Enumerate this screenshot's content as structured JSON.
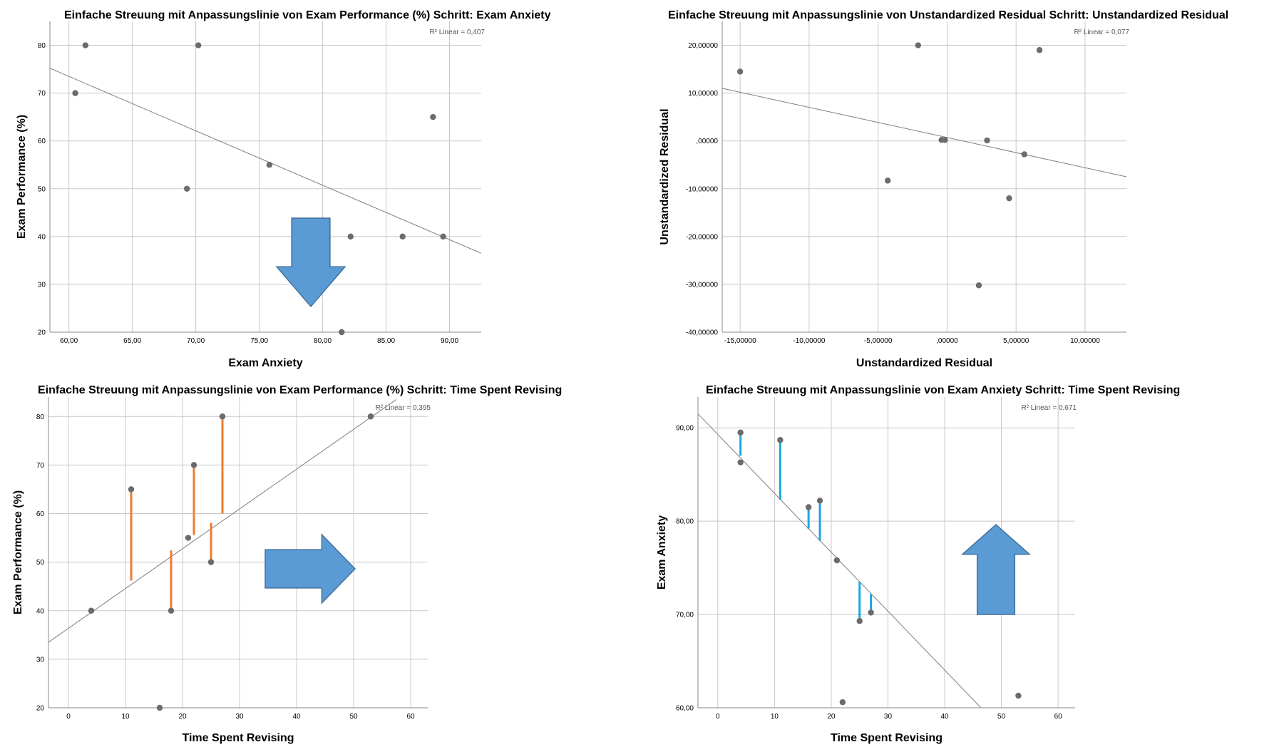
{
  "chart_data": [
    {
      "type": "scatter",
      "title": "Einfache Streuung mit Anpassungslinie  von Exam Performance (%) Schritt: Exam Anxiety",
      "xlabel": "Exam Anxiety",
      "ylabel": "Exam Performance (%)",
      "xlim": [
        58.5,
        92.5
      ],
      "ylim": [
        20,
        85
      ],
      "xticks": [
        60,
        65,
        70,
        75,
        80,
        85,
        90
      ],
      "xtick_labels": [
        "60,00",
        "65,00",
        "70,00",
        "75,00",
        "80,00",
        "85,00",
        "90,00"
      ],
      "yticks": [
        20,
        30,
        40,
        50,
        60,
        70,
        80
      ],
      "ytick_labels": [
        "20",
        "30",
        "40",
        "50",
        "60",
        "70",
        "80"
      ],
      "grid": true,
      "r2_label": "R² Linear = 0,407",
      "fit_line": {
        "x": [
          58.5,
          92.5
        ],
        "y": [
          75.2,
          36.5
        ]
      },
      "points": [
        {
          "x": 60.5,
          "y": 70
        },
        {
          "x": 61.3,
          "y": 80
        },
        {
          "x": 69.3,
          "y": 50
        },
        {
          "x": 70.2,
          "y": 80
        },
        {
          "x": 75.8,
          "y": 55
        },
        {
          "x": 81.5,
          "y": 20
        },
        {
          "x": 82.2,
          "y": 40
        },
        {
          "x": 86.3,
          "y": 40
        },
        {
          "x": 88.7,
          "y": 65
        },
        {
          "x": 89.5,
          "y": 40
        }
      ],
      "arrow": {
        "direction": "down",
        "color": "#5b9bd5"
      }
    },
    {
      "type": "scatter",
      "title": "Einfache Streuung mit Anpassungslinie  von Unstandardized Residual Schritt: Unstandardized Residual",
      "xlabel": "Unstandardized Residual",
      "ylabel": "Unstandardized Residual",
      "xlim": [
        -16.3,
        13
      ],
      "ylim": [
        -40,
        25
      ],
      "xticks": [
        -15,
        -10,
        -5,
        0,
        5,
        10
      ],
      "xtick_labels": [
        "-15,00000",
        "-10,00000",
        "-5,00000",
        ",00000",
        "5,00000",
        "10,00000"
      ],
      "yticks": [
        -40,
        -30,
        -20,
        -10,
        0,
        10,
        20
      ],
      "ytick_labels": [
        "-40,00000",
        "-30,00000",
        "-20,00000",
        "-10,00000",
        ",00000",
        "10,00000",
        "20,00000"
      ],
      "grid": true,
      "r2_label": "R² Linear = 0,077",
      "fit_line": {
        "x": [
          -16.3,
          13
        ],
        "y": [
          11.0,
          -7.5
        ]
      },
      "points": [
        {
          "x": -15,
          "y": 14.5
        },
        {
          "x": -4.3,
          "y": -8.3
        },
        {
          "x": -2.1,
          "y": 20
        },
        {
          "x": -0.4,
          "y": 0.2
        },
        {
          "x": -0.15,
          "y": 0.2
        },
        {
          "x": 2.3,
          "y": -30.2
        },
        {
          "x": 2.9,
          "y": 0.1
        },
        {
          "x": 4.5,
          "y": -12.0
        },
        {
          "x": 5.6,
          "y": -2.8
        },
        {
          "x": 6.7,
          "y": 19.0
        }
      ]
    },
    {
      "type": "scatter",
      "title": "Einfache Streuung mit Anpassungslinie  von Exam Performance (%) Schritt: Time Spent Revising",
      "xlabel": "Time Spent Revising",
      "ylabel": "Exam Performance (%)",
      "xlim": [
        -3.5,
        63
      ],
      "ylim": [
        20,
        84
      ],
      "xticks": [
        0,
        10,
        20,
        30,
        40,
        50,
        60
      ],
      "xtick_labels": [
        "0",
        "10",
        "20",
        "30",
        "40",
        "50",
        "60"
      ],
      "yticks": [
        20,
        30,
        40,
        50,
        60,
        70,
        80
      ],
      "ytick_labels": [
        "20",
        "30",
        "40",
        "50",
        "60",
        "70",
        "80"
      ],
      "grid": true,
      "r2_label": "R² Linear = 0,395",
      "fit_line": {
        "x": [
          -3.5,
          57.5
        ],
        "y": [
          33.5,
          83.5
        ]
      },
      "points": [
        {
          "x": 4,
          "y": 40
        },
        {
          "x": 11,
          "y": 65
        },
        {
          "x": 16,
          "y": 20
        },
        {
          "x": 18,
          "y": 40
        },
        {
          "x": 21,
          "y": 55
        },
        {
          "x": 22,
          "y": 70
        },
        {
          "x": 25,
          "y": 50
        },
        {
          "x": 27,
          "y": 80
        },
        {
          "x": 53,
          "y": 80
        }
      ],
      "residual_lines": {
        "color": "#ed7d31",
        "segments": [
          {
            "x": 11,
            "y1": 65,
            "y2": 46.2
          },
          {
            "x": 18,
            "y1": 40,
            "y2": 52.4
          },
          {
            "x": 22,
            "y1": 70,
            "y2": 55.6
          },
          {
            "x": 25,
            "y1": 50,
            "y2": 58.1
          },
          {
            "x": 27,
            "y1": 80,
            "y2": 60.0
          }
        ]
      },
      "arrow": {
        "direction": "right",
        "color": "#5b9bd5"
      }
    },
    {
      "type": "scatter",
      "title": "Einfache Streuung mit Anpassungslinie  von Exam Anxiety Schritt: Time Spent Revising",
      "xlabel": "Time Spent Revising",
      "ylabel": "Exam Anxiety",
      "xlim": [
        -3.5,
        63
      ],
      "ylim": [
        60,
        93.3
      ],
      "xticks": [
        0,
        10,
        20,
        30,
        40,
        50,
        60
      ],
      "xtick_labels": [
        "0",
        "10",
        "20",
        "30",
        "40",
        "50",
        "60"
      ],
      "yticks": [
        60,
        70,
        80,
        90
      ],
      "ytick_labels": [
        "60,00",
        "70,00",
        "80,00",
        "90,00"
      ],
      "grid": true,
      "r2_label": "R² Linear = 0,671",
      "fit_line": {
        "x": [
          -3.5,
          46.4
        ],
        "y": [
          91.5,
          60.0
        ]
      },
      "points": [
        {
          "x": 4,
          "y": 86.3
        },
        {
          "x": 4,
          "y": 89.5
        },
        {
          "x": 11,
          "y": 88.7
        },
        {
          "x": 16,
          "y": 81.5
        },
        {
          "x": 18,
          "y": 82.2
        },
        {
          "x": 21,
          "y": 75.8
        },
        {
          "x": 22,
          "y": 60.6
        },
        {
          "x": 25,
          "y": 69.3
        },
        {
          "x": 27,
          "y": 70.2
        },
        {
          "x": 53,
          "y": 61.3
        }
      ],
      "residual_lines": {
        "color": "#1aa7e0",
        "segments": [
          {
            "x": 4,
            "y1": 89.5,
            "y2": 87.0
          },
          {
            "x": 11,
            "y1": 88.7,
            "y2": 82.3
          },
          {
            "x": 16,
            "y1": 81.5,
            "y2": 79.2
          },
          {
            "x": 18,
            "y1": 82.2,
            "y2": 77.9
          },
          {
            "x": 25,
            "y1": 69.3,
            "y2": 73.5
          },
          {
            "x": 27,
            "y1": 70.2,
            "y2": 72.2
          }
        ]
      },
      "arrow": {
        "direction": "up",
        "color": "#5b9bd5"
      }
    }
  ]
}
